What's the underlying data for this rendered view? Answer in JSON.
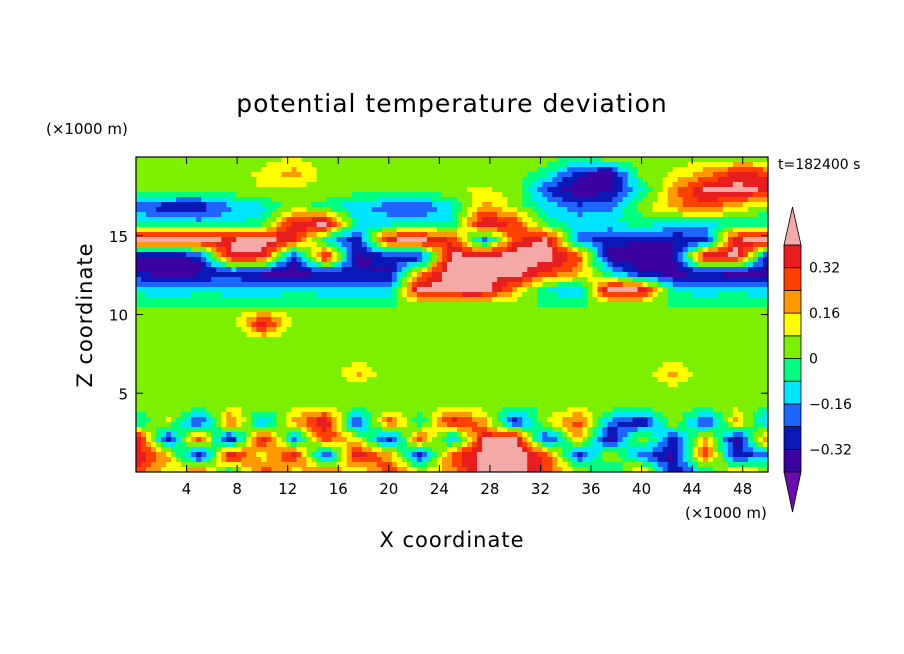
{
  "chart_data": {
    "type": "heatmap",
    "title": "potential temperature deviation",
    "xlabel": "X coordinate",
    "ylabel": "Z coordinate",
    "x_unit": "(×1000 m)",
    "y_unit": "(×1000 m)",
    "time_label": "t=182400 s",
    "xlim": [
      0,
      50
    ],
    "ylim": [
      0,
      20
    ],
    "x_ticks": [
      4,
      8,
      12,
      16,
      20,
      24,
      28,
      32,
      36,
      40,
      44,
      48
    ],
    "y_ticks": [
      5,
      10,
      15
    ],
    "colorbar": {
      "tick_values": [
        0.32,
        0.16,
        0,
        -0.16,
        -0.32
      ],
      "tick_labels": [
        "0.32",
        "0.16",
        "0",
        "−0.16",
        "−0.32"
      ],
      "levels": [
        -0.4,
        -0.32,
        -0.24,
        -0.16,
        -0.08,
        0,
        0.08,
        0.16,
        0.24,
        0.32,
        0.4
      ],
      "colors": [
        "#6a0dad",
        "#3a00a0",
        "#0a18b8",
        "#1e64ff",
        "#00e5ff",
        "#00ff80",
        "#7cf000",
        "#ffff00",
        "#ff9a00",
        "#ff4000",
        "#e81e1e",
        "#f4a8a8"
      ]
    },
    "field": [
      [
        0.0,
        0.04,
        0.03,
        0.0,
        0.04,
        0.08,
        0.04,
        0.0,
        0.04,
        0.06,
        0.04,
        0.03,
        0.07,
        0.04,
        0.0,
        0.08,
        0.04,
        0.03,
        0.04,
        0.0,
        0.04
      ],
      [
        0.03,
        0.04,
        0.05,
        0.03,
        0.1,
        0.2,
        0.04,
        0.03,
        0.04,
        0.05,
        0.04,
        0.04,
        0.05,
        -0.05,
        -0.3,
        -0.36,
        0.04,
        0.09,
        0.2,
        0.36,
        0.3
      ],
      [
        0.04,
        0.03,
        0.0,
        0.05,
        0.08,
        0.04,
        0.06,
        0.04,
        0.05,
        0.04,
        0.06,
        0.1,
        0.04,
        -0.25,
        -0.4,
        -0.34,
        -0.1,
        0.2,
        0.42,
        0.44,
        0.38
      ],
      [
        -0.2,
        -0.3,
        -0.3,
        -0.18,
        -0.1,
        0.05,
        -0.05,
        -0.15,
        -0.2,
        -0.24,
        -0.1,
        0.2,
        0.05,
        -0.1,
        -0.22,
        -0.18,
        0.05,
        0.2,
        0.3,
        0.15,
        0.04
      ],
      [
        -0.08,
        -0.1,
        -0.12,
        -0.08,
        -0.05,
        0.38,
        0.45,
        -0.1,
        -0.12,
        -0.1,
        -0.08,
        0.42,
        0.3,
        -0.05,
        -0.1,
        -0.08,
        -0.05,
        -0.08,
        -0.1,
        -0.05,
        -0.1
      ],
      [
        0.42,
        0.45,
        0.44,
        0.4,
        0.46,
        0.35,
        -0.1,
        -0.3,
        0.4,
        0.44,
        0.3,
        -0.2,
        0.3,
        0.44,
        -0.2,
        -0.3,
        -0.3,
        -0.32,
        -0.3,
        0.4,
        0.44
      ],
      [
        -0.36,
        -0.38,
        -0.3,
        0.4,
        0.36,
        -0.3,
        0.4,
        -0.34,
        -0.3,
        -0.32,
        0.44,
        0.42,
        0.46,
        0.45,
        0.3,
        -0.36,
        -0.38,
        -0.36,
        0.42,
        0.44,
        -0.3
      ],
      [
        -0.32,
        -0.36,
        -0.34,
        -0.3,
        -0.34,
        -0.36,
        -0.32,
        -0.3,
        -0.34,
        0.2,
        0.46,
        0.44,
        0.45,
        0.3,
        0.2,
        -0.1,
        -0.34,
        -0.36,
        -0.32,
        -0.36,
        -0.34
      ],
      [
        -0.1,
        -0.15,
        -0.1,
        -0.12,
        -0.14,
        -0.1,
        -0.12,
        -0.15,
        -0.14,
        0.44,
        0.45,
        0.46,
        0.2,
        -0.1,
        -0.15,
        0.44,
        0.4,
        -0.1,
        -0.12,
        -0.1,
        -0.14
      ],
      [
        0.0,
        0.0,
        0.0,
        0.0,
        0.0,
        0.0,
        0.0,
        0.0,
        0.0,
        0.0,
        0.0,
        0.0,
        0.0,
        0.0,
        0.0,
        0.0,
        0.0,
        0.0,
        0.0,
        0.0,
        0.0
      ],
      [
        0.0,
        0.0,
        0.0,
        0.0,
        0.4,
        0.05,
        0.0,
        0.0,
        0.0,
        0.0,
        0.0,
        0.0,
        0.0,
        0.0,
        0.0,
        0.0,
        0.0,
        0.0,
        0.0,
        0.0,
        0.0
      ],
      [
        0.0,
        0.0,
        0.0,
        0.0,
        0.08,
        0.0,
        0.0,
        0.0,
        0.0,
        0.04,
        0.05,
        0.04,
        0.04,
        0.0,
        0.0,
        0.0,
        0.0,
        0.0,
        0.0,
        0.0,
        0.0
      ],
      [
        0.0,
        0.0,
        0.04,
        0.0,
        0.0,
        0.04,
        0.0,
        0.0,
        0.0,
        0.05,
        0.05,
        0.04,
        0.0,
        0.0,
        0.04,
        0.05,
        0.05,
        0.0,
        0.04,
        0.0,
        0.0
      ],
      [
        0.0,
        0.0,
        0.0,
        0.0,
        0.05,
        0.05,
        0.0,
        0.2,
        0.0,
        0.05,
        0.04,
        0.04,
        0.0,
        0.0,
        0.04,
        0.05,
        0.0,
        0.2,
        0.0,
        0.0,
        0.0
      ],
      [
        0.05,
        0.05,
        0.04,
        0.05,
        0.05,
        0.05,
        0.04,
        0.0,
        0.0,
        0.0,
        0.0,
        0.0,
        0.0,
        0.0,
        0.05,
        0.05,
        0.05,
        0.05,
        0.04,
        0.04,
        0.0
      ],
      [
        0.05,
        0.06,
        0.05,
        0.05,
        0.06,
        0.05,
        0.05,
        0.05,
        0.0,
        0.05,
        0.04,
        0.05,
        0.0,
        0.0,
        0.05,
        0.06,
        0.05,
        0.05,
        0.05,
        0.05,
        0.0
      ],
      [
        -0.1,
        0.1,
        -0.3,
        0.3,
        -0.2,
        0.2,
        0.42,
        -0.3,
        0.3,
        -0.1,
        0.4,
        0.2,
        -0.3,
        0.1,
        0.3,
        -0.2,
        -0.35,
        0.1,
        -0.3,
        0.2,
        -0.2
      ],
      [
        0.42,
        -0.3,
        0.3,
        -0.36,
        0.4,
        -0.2,
        0.3,
        0.1,
        -0.3,
        0.3,
        -0.2,
        0.4,
        0.44,
        -0.3,
        0.2,
        -0.36,
        0.1,
        -0.3,
        0.2,
        -0.36,
        0.3
      ],
      [
        0.4,
        0.2,
        -0.36,
        0.42,
        0.1,
        0.38,
        -0.3,
        0.4,
        0.2,
        -0.3,
        0.3,
        0.45,
        0.46,
        0.3,
        -0.3,
        0.1,
        -0.2,
        -0.36,
        0.3,
        -0.3,
        -0.2
      ],
      [
        0.3,
        0.1,
        0.3,
        -0.1,
        0.3,
        0.1,
        0.3,
        0.05,
        0.3,
        0.1,
        0.2,
        0.44,
        0.45,
        0.3,
        0.1,
        -0.1,
        0.2,
        -0.3,
        -0.1,
        0.2,
        0.1
      ]
    ]
  }
}
